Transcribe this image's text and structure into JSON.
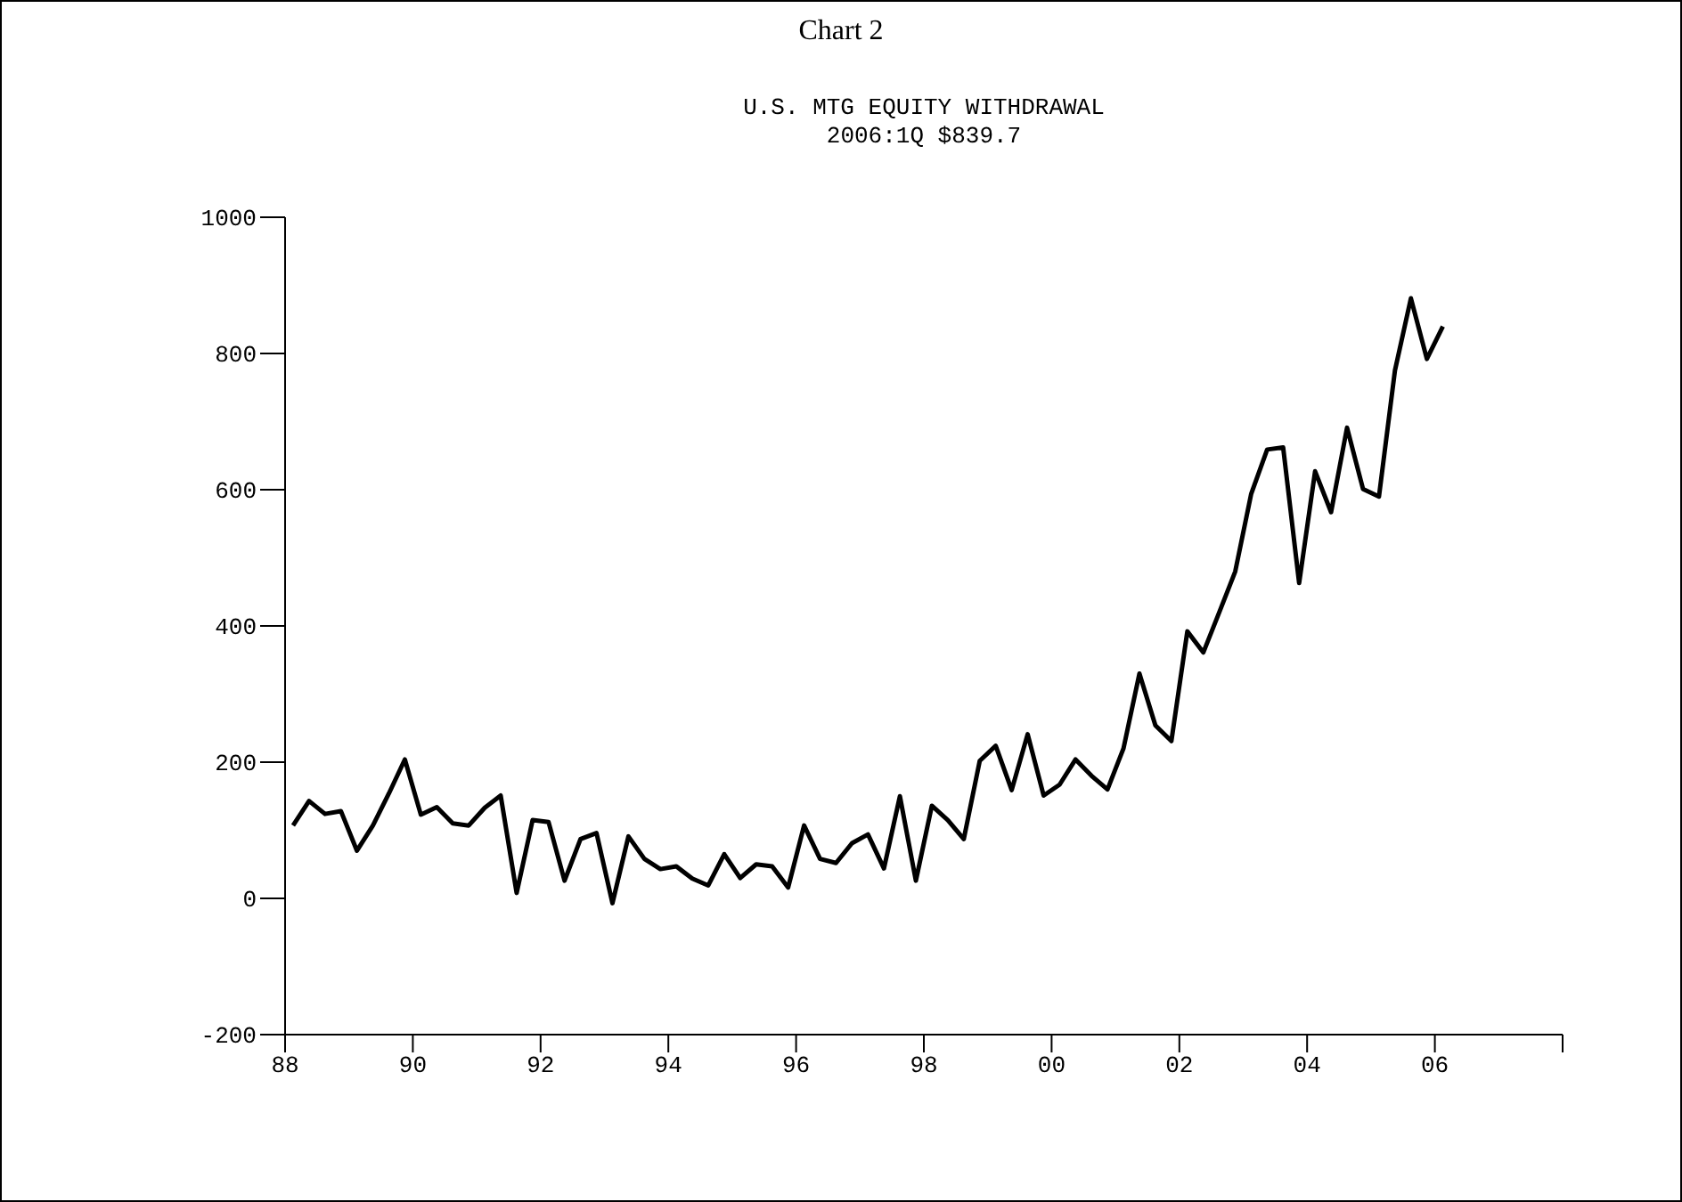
{
  "chart_data": {
    "type": "line",
    "title": "Chart 2",
    "subtitle": "U.S. MTG EQUITY WITHDRAWAL",
    "annotations": [
      "2006:1Q $839.7"
    ],
    "x": [
      1988.125,
      1988.375,
      1988.625,
      1988.875,
      1989.125,
      1989.375,
      1989.625,
      1989.875,
      1990.125,
      1990.375,
      1990.625,
      1990.875,
      1991.125,
      1991.375,
      1991.625,
      1991.875,
      1992.125,
      1992.375,
      1992.625,
      1992.875,
      1993.125,
      1993.375,
      1993.625,
      1993.875,
      1994.125,
      1994.375,
      1994.625,
      1994.875,
      1995.125,
      1995.375,
      1995.625,
      1995.875,
      1996.125,
      1996.375,
      1996.625,
      1996.875,
      1997.125,
      1997.375,
      1997.625,
      1997.875,
      1998.125,
      1998.375,
      1998.625,
      1998.875,
      1999.125,
      1999.375,
      1999.625,
      1999.875,
      2000.125,
      2000.375,
      2000.625,
      2000.875,
      2001.125,
      2001.375,
      2001.625,
      2001.875,
      2002.125,
      2002.375,
      2002.625,
      2002.875,
      2003.125,
      2003.375,
      2003.625,
      2003.875,
      2004.125,
      2004.375,
      2004.625,
      2004.875,
      2005.125,
      2005.375,
      2005.625,
      2005.875,
      2006.125
    ],
    "series": [
      {
        "color": "#000000",
        "values": [
          107,
          143,
          124,
          128,
          70,
          107,
          154,
          204,
          123,
          134,
          110,
          107,
          133,
          151,
          8,
          115,
          112,
          26,
          87,
          96,
          -7,
          91,
          58,
          43,
          47,
          29,
          19,
          65,
          30,
          50,
          47,
          16,
          107,
          58,
          52,
          81,
          94,
          44,
          150,
          26,
          136,
          115,
          87,
          202,
          224,
          159,
          241,
          151,
          167,
          204,
          180,
          160,
          220,
          330,
          254,
          231,
          392,
          361,
          420,
          480,
          594,
          659,
          662,
          463,
          627,
          567,
          691,
          601,
          590,
          775,
          881,
          792,
          839.7
        ]
      }
    ],
    "xlim": [
      1988,
      2008
    ],
    "xticks": [
      {
        "value": 1988,
        "label": "88"
      },
      {
        "value": 1990,
        "label": "90"
      },
      {
        "value": 1992,
        "label": "92"
      },
      {
        "value": 1994,
        "label": "94"
      },
      {
        "value": 1996,
        "label": "96"
      },
      {
        "value": 1998,
        "label": "98"
      },
      {
        "value": 2000,
        "label": "00"
      },
      {
        "value": 2002,
        "label": "02"
      },
      {
        "value": 2004,
        "label": "04"
      },
      {
        "value": 2006,
        "label": "06"
      },
      {
        "value": 2008,
        "label": null
      }
    ],
    "ylim": [
      -200,
      1000
    ],
    "yticks": [
      -200,
      0,
      200,
      400,
      600,
      800,
      1000
    ],
    "grid": false,
    "legend": false,
    "marker": "none",
    "line_style": "solid"
  }
}
